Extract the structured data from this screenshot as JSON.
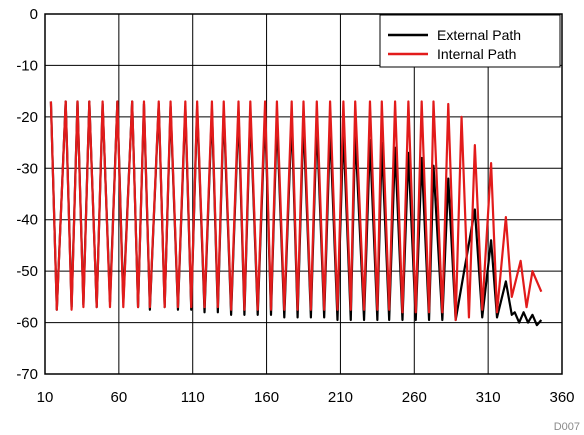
{
  "chart_data": {
    "type": "line",
    "title": "",
    "xlabel": "",
    "ylabel": "",
    "xlim": [
      10,
      360
    ],
    "ylim": [
      -70,
      0
    ],
    "x_ticks": [
      "10",
      "60",
      "110",
      "160",
      "210",
      "260",
      "310",
      "360"
    ],
    "y_ticks": [
      "0",
      "-10",
      "-20",
      "-30",
      "-40",
      "-50",
      "-60",
      "-70"
    ],
    "grid": true,
    "legend_position": "top-right",
    "figure_code": "D007",
    "series": [
      {
        "name": "External Path",
        "color": "#000000",
        "peaks": [
          [
            14,
            -17
          ],
          [
            24,
            -17
          ],
          [
            32,
            -17
          ],
          [
            40,
            -17
          ],
          [
            49,
            -17.5
          ],
          [
            59,
            -17
          ],
          [
            69,
            -17
          ],
          [
            77,
            -17.5
          ],
          [
            87,
            -17.5
          ],
          [
            95,
            -18
          ],
          [
            105,
            -18
          ],
          [
            113,
            -18
          ],
          [
            123,
            -18.5
          ],
          [
            131,
            -18.5
          ],
          [
            141,
            -19
          ],
          [
            149,
            -19
          ],
          [
            159,
            -19.5
          ],
          [
            167,
            -20
          ],
          [
            177,
            -20
          ],
          [
            185,
            -20.5
          ],
          [
            194,
            -21
          ],
          [
            203,
            -22
          ],
          [
            212,
            -22.5
          ],
          [
            220,
            -23
          ],
          [
            230,
            -24.5
          ],
          [
            238,
            -25
          ],
          [
            247,
            -26
          ],
          [
            256,
            -27
          ],
          [
            265,
            -28
          ],
          [
            273,
            -29.5
          ],
          [
            283,
            -32
          ],
          [
            301,
            -38
          ],
          [
            312,
            -44
          ],
          [
            322,
            -52
          ]
        ],
        "troughs": [
          [
            18,
            -57.5
          ],
          [
            28,
            -57
          ],
          [
            36,
            -56.5
          ],
          [
            45,
            -57
          ],
          [
            54,
            -56
          ],
          [
            63,
            -56
          ],
          [
            73,
            -57
          ],
          [
            81,
            -57.5
          ],
          [
            91,
            -57
          ],
          [
            100,
            -57.5
          ],
          [
            109,
            -57.5
          ],
          [
            118,
            -58
          ],
          [
            127,
            -58
          ],
          [
            136,
            -58.5
          ],
          [
            145,
            -58.5
          ],
          [
            154,
            -58.5
          ],
          [
            163,
            -58.5
          ],
          [
            172,
            -59
          ],
          [
            181,
            -59
          ],
          [
            190,
            -59
          ],
          [
            199,
            -59
          ],
          [
            208,
            -59.5
          ],
          [
            217,
            -59.5
          ],
          [
            226,
            -59.5
          ],
          [
            235,
            -59.5
          ],
          [
            243,
            -59.5
          ],
          [
            252,
            -59.5
          ],
          [
            261,
            -59.5
          ],
          [
            270,
            -59.5
          ],
          [
            279,
            -59.5
          ],
          [
            288,
            -59.5
          ],
          [
            306,
            -59
          ],
          [
            316,
            -59
          ],
          [
            326,
            -58.5
          ]
        ],
        "tail": [
          [
            328,
            -58
          ],
          [
            331,
            -60
          ],
          [
            334,
            -58
          ],
          [
            337,
            -60
          ],
          [
            340,
            -58.5
          ],
          [
            343,
            -60.5
          ],
          [
            346,
            -59.5
          ]
        ]
      },
      {
        "name": "Internal Path",
        "color": "#e21b1b",
        "peaks": [
          [
            14,
            -17
          ],
          [
            24,
            -17
          ],
          [
            32,
            -17
          ],
          [
            40,
            -17
          ],
          [
            49,
            -17
          ],
          [
            59,
            -17
          ],
          [
            69,
            -17
          ],
          [
            77,
            -17
          ],
          [
            87,
            -17
          ],
          [
            95,
            -17
          ],
          [
            105,
            -17
          ],
          [
            113,
            -17
          ],
          [
            123,
            -17
          ],
          [
            131,
            -17
          ],
          [
            141,
            -17
          ],
          [
            149,
            -17
          ],
          [
            159,
            -17
          ],
          [
            167,
            -17
          ],
          [
            177,
            -17
          ],
          [
            185,
            -17
          ],
          [
            194,
            -17
          ],
          [
            203,
            -17
          ],
          [
            212,
            -17
          ],
          [
            220,
            -17
          ],
          [
            230,
            -17
          ],
          [
            238,
            -17
          ],
          [
            247,
            -17
          ],
          [
            256,
            -17
          ],
          [
            265,
            -17
          ],
          [
            273,
            -17
          ],
          [
            283,
            -17.5
          ],
          [
            292,
            -20
          ],
          [
            301,
            -25.5
          ],
          [
            312,
            -29
          ],
          [
            322,
            -39.5
          ],
          [
            332,
            -48
          ],
          [
            340,
            -50
          ]
        ],
        "troughs": [
          [
            18,
            -57.5
          ],
          [
            28,
            -57.5
          ],
          [
            36,
            -57
          ],
          [
            45,
            -57
          ],
          [
            54,
            -57
          ],
          [
            63,
            -57
          ],
          [
            73,
            -57
          ],
          [
            81,
            -57
          ],
          [
            91,
            -57
          ],
          [
            100,
            -57
          ],
          [
            109,
            -57
          ],
          [
            118,
            -57
          ],
          [
            127,
            -57
          ],
          [
            136,
            -57.5
          ],
          [
            145,
            -57.5
          ],
          [
            154,
            -57.5
          ],
          [
            163,
            -57.5
          ],
          [
            172,
            -57.5
          ],
          [
            181,
            -57.5
          ],
          [
            190,
            -57.5
          ],
          [
            199,
            -57.5
          ],
          [
            208,
            -57.5
          ],
          [
            217,
            -57.5
          ],
          [
            226,
            -57.5
          ],
          [
            235,
            -57.5
          ],
          [
            243,
            -57.5
          ],
          [
            252,
            -58
          ],
          [
            261,
            -58
          ],
          [
            270,
            -58
          ],
          [
            279,
            -58
          ],
          [
            288,
            -59.5
          ],
          [
            297,
            -59
          ],
          [
            306,
            -57.5
          ],
          [
            316,
            -58
          ],
          [
            326,
            -55
          ],
          [
            336,
            -57
          ],
          [
            346,
            -54
          ]
        ]
      }
    ]
  }
}
